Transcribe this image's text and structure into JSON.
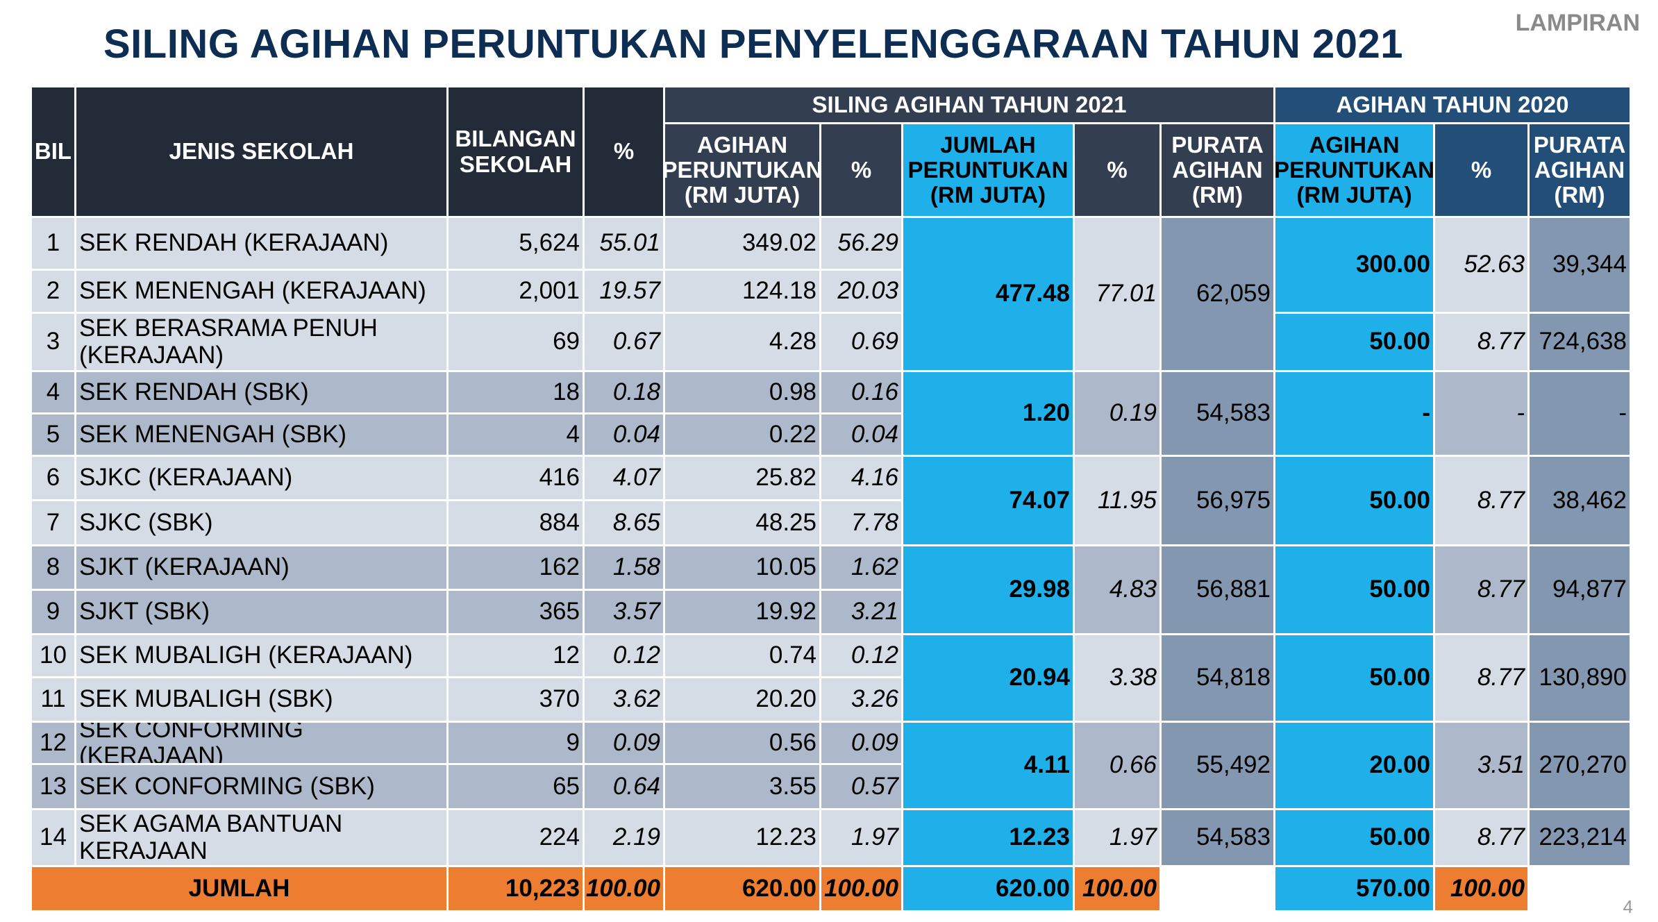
{
  "title": "SILING AGIHAN PERUNTUKAN PENYELENGGARAAN TAHUN 2021",
  "lampiran": "LAMPIRAN",
  "page_number": "4",
  "colors": {
    "header_dark": "#232b38",
    "header_2021": "#333f50",
    "header_2020": "#234e78",
    "cyan": "#1fb0ea",
    "row_light": "#d6dce5",
    "row_dark": "#adb9ca",
    "purata": "#8497b0",
    "total": "#ed7d31",
    "title": "#0d2d52"
  },
  "headers": {
    "bil": "BIL",
    "jenis": "JENIS SEKOLAH",
    "bilangan": "BILANGAN SEKOLAH",
    "pct": "%",
    "siling_2021": "SILING AGIHAN TAHUN 2021",
    "agihan_2020": "AGIHAN TAHUN 2020",
    "agihan_peruntukan": "AGIHAN PERUNTUKAN (RM JUTA)",
    "pct2": "%",
    "jumlah_peruntukan": "JUMLAH PERUNTUKAN (RM JUTA)",
    "pct3": "%",
    "purata_agihan": "PURATA AGIHAN (RM)",
    "agihan_peruntukan_2020": "AGIHAN PERUNTUKAN (RM JUTA)",
    "pct4": "%",
    "purata_agihan_2020": "PURATA AGIHAN (RM)"
  },
  "rows": [
    {
      "bil": "1",
      "jenis": "SEK RENDAH (KERAJAAN)",
      "bilangan": "5,624",
      "pct": "55.01",
      "agihan": "349.02",
      "agihan_pct": "56.29"
    },
    {
      "bil": "2",
      "jenis": "SEK MENENGAH (KERAJAAN)",
      "bilangan": "2,001",
      "pct": "19.57",
      "agihan": "124.18",
      "agihan_pct": "20.03"
    },
    {
      "bil": "3",
      "jenis": "SEK BERASRAMA PENUH (KERAJAAN)",
      "bilangan": "69",
      "pct": "0.67",
      "agihan": "4.28",
      "agihan_pct": "0.69"
    },
    {
      "bil": "4",
      "jenis": "SEK RENDAH (SBK)",
      "bilangan": "18",
      "pct": "0.18",
      "agihan": "0.98",
      "agihan_pct": "0.16"
    },
    {
      "bil": "5",
      "jenis": "SEK MENENGAH (SBK)",
      "bilangan": "4",
      "pct": "0.04",
      "agihan": "0.22",
      "agihan_pct": "0.04"
    },
    {
      "bil": "6",
      "jenis": "SJKC (KERAJAAN)",
      "bilangan": "416",
      "pct": "4.07",
      "agihan": "25.82",
      "agihan_pct": "4.16"
    },
    {
      "bil": "7",
      "jenis": "SJKC (SBK)",
      "bilangan": "884",
      "pct": "8.65",
      "agihan": "48.25",
      "agihan_pct": "7.78"
    },
    {
      "bil": "8",
      "jenis": "SJKT (KERAJAAN)",
      "bilangan": "162",
      "pct": "1.58",
      "agihan": "10.05",
      "agihan_pct": "1.62"
    },
    {
      "bil": "9",
      "jenis": "SJKT (SBK)",
      "bilangan": "365",
      "pct": "3.57",
      "agihan": "19.92",
      "agihan_pct": "3.21"
    },
    {
      "bil": "10",
      "jenis": "SEK MUBALIGH (KERAJAAN)",
      "bilangan": "12",
      "pct": "0.12",
      "agihan": "0.74",
      "agihan_pct": "0.12"
    },
    {
      "bil": "11",
      "jenis": "SEK MUBALIGH (SBK)",
      "bilangan": "370",
      "pct": "3.62",
      "agihan": "20.20",
      "agihan_pct": "3.26"
    },
    {
      "bil": "12",
      "jenis": "SEK CONFORMING (KERAJAAN)",
      "bilangan": "9",
      "pct": "0.09",
      "agihan": "0.56",
      "agihan_pct": "0.09"
    },
    {
      "bil": "13",
      "jenis": "SEK CONFORMING (SBK)",
      "bilangan": "65",
      "pct": "0.64",
      "agihan": "3.55",
      "agihan_pct": "0.57"
    },
    {
      "bil": "14",
      "jenis": "SEK AGAMA BANTUAN KERAJAAN",
      "bilangan": "224",
      "pct": "2.19",
      "agihan": "12.23",
      "agihan_pct": "1.97"
    }
  ],
  "groups_2021": [
    {
      "rows": [
        1,
        2,
        3
      ],
      "jumlah": "477.48",
      "pct": "77.01",
      "purata": "62,059"
    },
    {
      "rows": [
        4,
        5
      ],
      "jumlah": "1.20",
      "pct": "0.19",
      "purata": "54,583"
    },
    {
      "rows": [
        6,
        7
      ],
      "jumlah": "74.07",
      "pct": "11.95",
      "purata": "56,975"
    },
    {
      "rows": [
        8,
        9
      ],
      "jumlah": "29.98",
      "pct": "4.83",
      "purata": "56,881"
    },
    {
      "rows": [
        10,
        11
      ],
      "jumlah": "20.94",
      "pct": "3.38",
      "purata": "54,818"
    },
    {
      "rows": [
        12,
        13
      ],
      "jumlah": "4.11",
      "pct": "0.66",
      "purata": "55,492"
    },
    {
      "rows": [
        14
      ],
      "jumlah": "12.23",
      "pct": "1.97",
      "purata": "54,583"
    }
  ],
  "groups_2020": [
    {
      "rows": [
        1,
        2
      ],
      "agihan": "300.00",
      "pct": "52.63",
      "purata": "39,344"
    },
    {
      "rows": [
        3
      ],
      "agihan": "50.00",
      "pct": "8.77",
      "purata": "724,638"
    },
    {
      "rows": [
        4,
        5
      ],
      "agihan": "-",
      "pct": "-",
      "purata": "-"
    },
    {
      "rows": [
        6,
        7
      ],
      "agihan": "50.00",
      "pct": "8.77",
      "purata": "38,462"
    },
    {
      "rows": [
        8,
        9
      ],
      "agihan": "50.00",
      "pct": "8.77",
      "purata": "94,877"
    },
    {
      "rows": [
        10,
        11
      ],
      "agihan": "50.00",
      "pct": "8.77",
      "purata": "130,890"
    },
    {
      "rows": [
        12,
        13
      ],
      "agihan": "20.00",
      "pct": "3.51",
      "purata": "270,270"
    },
    {
      "rows": [
        14
      ],
      "agihan": "50.00",
      "pct": "8.77",
      "purata": "223,214"
    }
  ],
  "total": {
    "label": "JUMLAH",
    "bilangan": "10,223",
    "pct": "100.00",
    "agihan": "620.00",
    "agihan_pct": "100.00",
    "jumlah": "620.00",
    "jumlah_pct": "100.00",
    "agihan_2020": "570.00",
    "pct_2020": "100.00"
  }
}
